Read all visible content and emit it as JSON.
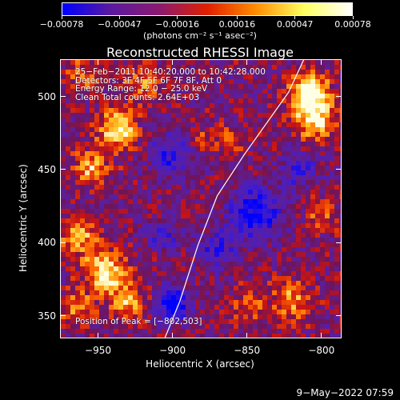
{
  "chart_data": {
    "type": "heatmap",
    "title": "Reconstructed RHESSI Image",
    "xlabel": "Heliocentric X (arcsec)",
    "ylabel": "Heliocentric Y (arcsec)",
    "xlim": [
      -975,
      -787
    ],
    "ylim": [
      335,
      525
    ],
    "x_ticks": [
      -950,
      -900,
      -850,
      -800
    ],
    "x_tick_labels": [
      "−950",
      "−900",
      "−850",
      "−800"
    ],
    "y_ticks": [
      350,
      400,
      450,
      500
    ],
    "y_tick_labels": [
      "350",
      "400",
      "450",
      "500"
    ],
    "colorbar": {
      "ticks": [
        -0.00078,
        -0.00047,
        -0.00016,
        0.00016,
        0.00047,
        0.00078
      ],
      "tick_labels": [
        "−0.00078",
        "−0.00047",
        "−0.00016",
        "0.00016",
        "0.00047",
        "0.00078"
      ],
      "units": "(photons cm⁻² s⁻¹ asec⁻²)",
      "colors": [
        "#0000ff",
        "#5a1aa0",
        "#8a1a70",
        "#e02000",
        "#ff8c00",
        "#ffff60",
        "#ffffff"
      ]
    },
    "annotation_lines": [
      "25−Feb−2011 10:40:20.000 to 10:42:28.000",
      "Detectors: 3F 4F 5F 6F 7F 8F, Att 0",
      "Energy Range: 12.0 − 25.0 keV",
      "Clean      Total counts: 2.64E+03"
    ],
    "peak_label": "Position of Peak = [−802,503]",
    "peak_position": [
      -802,
      503
    ],
    "limb_line": [
      [
        -905,
        335
      ],
      [
        -895,
        360
      ],
      [
        -883,
        398
      ],
      [
        -870,
        432
      ],
      [
        -852,
        460
      ],
      [
        -822,
        503
      ],
      [
        -812,
        525
      ]
    ],
    "bright_regions": [
      {
        "x": -808,
        "y": 503,
        "sigma": 9,
        "amp": 1.0
      },
      {
        "x": -805,
        "y": 485,
        "sigma": 10,
        "amp": 0.85
      },
      {
        "x": -937,
        "y": 478,
        "sigma": 9,
        "amp": 0.95
      },
      {
        "x": -955,
        "y": 452,
        "sigma": 9,
        "amp": 0.6
      },
      {
        "x": -963,
        "y": 405,
        "sigma": 9,
        "amp": 0.7
      },
      {
        "x": -945,
        "y": 380,
        "sigma": 10,
        "amp": 0.85
      },
      {
        "x": -930,
        "y": 360,
        "sigma": 9,
        "amp": 0.6
      },
      {
        "x": -965,
        "y": 355,
        "sigma": 8,
        "amp": 0.55
      },
      {
        "x": -920,
        "y": 510,
        "sigma": 9,
        "amp": 0.55
      },
      {
        "x": -960,
        "y": 515,
        "sigma": 8,
        "amp": 0.45
      },
      {
        "x": -880,
        "y": 470,
        "sigma": 7,
        "amp": 0.35
      },
      {
        "x": -820,
        "y": 360,
        "sigma": 10,
        "amp": 0.55
      },
      {
        "x": -850,
        "y": 355,
        "sigma": 9,
        "amp": 0.4
      },
      {
        "x": -800,
        "y": 420,
        "sigma": 8,
        "amp": 0.4
      },
      {
        "x": -860,
        "y": 470,
        "sigma": 8,
        "amp": 0.3
      }
    ],
    "dark_regions": [
      {
        "x": -900,
        "y": 358,
        "sigma": 8,
        "amp": -0.95
      },
      {
        "x": -845,
        "y": 420,
        "sigma": 12,
        "amp": -0.85
      },
      {
        "x": -900,
        "y": 460,
        "sigma": 10,
        "amp": -0.6
      },
      {
        "x": -815,
        "y": 450,
        "sigma": 9,
        "amp": -0.5
      },
      {
        "x": -870,
        "y": 395,
        "sigma": 9,
        "amp": -0.55
      },
      {
        "x": -905,
        "y": 405,
        "sigma": 8,
        "amp": -0.45
      }
    ]
  },
  "footer_date": "9−May−2022 07:59"
}
